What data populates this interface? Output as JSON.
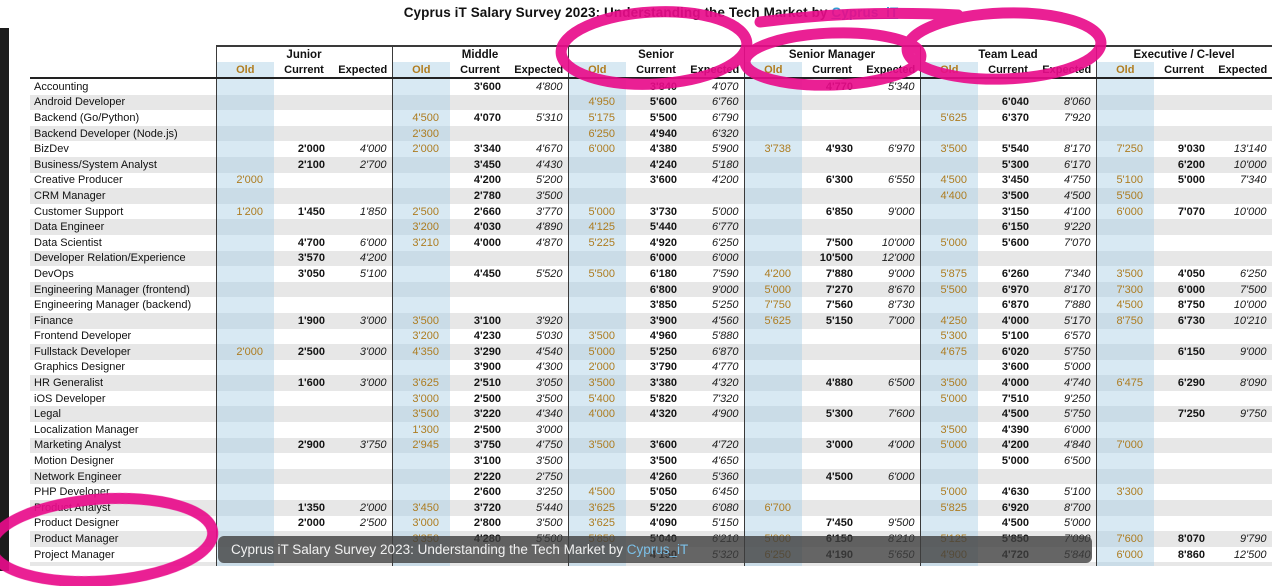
{
  "title": {
    "prefix": "Cyprus iT Salary Survey 2023: Understanding the Tech Market by ",
    "link": "Cyprus_iT"
  },
  "caption_bar": {
    "prefix": "Cyprus iT Salary Survey 2023: Understanding the Tech Market by ",
    "link": "Cyprus_iT"
  },
  "colors": {
    "marker_pink": "#e90c8b",
    "old_text": "#ad7c20",
    "old_column_bg": "#d8e9f3",
    "title_link_blue": "#2e9fd4",
    "caption_link_blue": "#7cc0e8",
    "row_stripe_gray": "#e7e7e7"
  },
  "annotations": {
    "circled_items": [
      "Senior",
      "Senior Manager",
      "Team Lead",
      "Project Manager"
    ]
  },
  "table": {
    "groups": [
      "Junior",
      "Middle",
      "Senior",
      "Senior Manager",
      "Team Lead",
      "Executive / C-level"
    ],
    "sub_headers": [
      "Old",
      "Current",
      "Expected"
    ],
    "rows": [
      {
        "label": "Accounting",
        "values": [
          "",
          "",
          "",
          "",
          "3'600",
          "4'800",
          "",
          "3'840",
          "4'070",
          "",
          "4'770",
          "5'340",
          "",
          "",
          "",
          "",
          "",
          ""
        ]
      },
      {
        "label": "Android Developer",
        "values": [
          "",
          "",
          "",
          "",
          "",
          "",
          "4'950",
          "5'600",
          "6'760",
          "",
          "",
          "",
          "",
          "6'040",
          "8'060",
          "",
          "",
          ""
        ]
      },
      {
        "label": "Backend (Go/Python)",
        "values": [
          "",
          "",
          "",
          "4'500",
          "4'070",
          "5'310",
          "5'175",
          "5'500",
          "6'790",
          "",
          "",
          "",
          "5'625",
          "6'370",
          "7'920",
          "",
          "",
          ""
        ]
      },
      {
        "label": "Backend Developer (Node.js)",
        "values": [
          "",
          "",
          "",
          "2'300",
          "",
          "",
          "6'250",
          "4'940",
          "6'320",
          "",
          "",
          "",
          "",
          "",
          "",
          "",
          "",
          ""
        ]
      },
      {
        "label": "BizDev",
        "values": [
          "",
          "2'000",
          "4'000",
          "2'000",
          "3'340",
          "4'670",
          "6'000",
          "4'380",
          "5'900",
          "3'738",
          "4'930",
          "6'970",
          "3'500",
          "5'540",
          "8'170",
          "7'250",
          "9'030",
          "13'140"
        ]
      },
      {
        "label": "Business/System Analyst",
        "values": [
          "",
          "2'100",
          "2'700",
          "",
          "3'450",
          "4'430",
          "",
          "4'240",
          "5'180",
          "",
          "",
          "",
          "",
          "5'300",
          "6'170",
          "",
          "6'200",
          "10'000"
        ]
      },
      {
        "label": "Creative Producer",
        "values": [
          "2'000",
          "",
          "",
          "",
          "4'200",
          "5'200",
          "",
          "3'600",
          "4'200",
          "",
          "6'300",
          "6'550",
          "4'500",
          "3'450",
          "4'750",
          "5'100",
          "5'000",
          "7'340"
        ]
      },
      {
        "label": "CRM Manager",
        "values": [
          "",
          "",
          "",
          "",
          "2'780",
          "3'500",
          "",
          "",
          "",
          "",
          "",
          "",
          "4'400",
          "3'500",
          "4'500",
          "5'500",
          "",
          ""
        ]
      },
      {
        "label": "Customer Support",
        "values": [
          "1'200",
          "1'450",
          "1'850",
          "2'500",
          "2'660",
          "3'770",
          "5'000",
          "3'730",
          "5'000",
          "",
          "6'850",
          "9'000",
          "",
          "3'150",
          "4'100",
          "6'000",
          "7'070",
          "10'000"
        ]
      },
      {
        "label": "Data Engineer",
        "values": [
          "",
          "",
          "",
          "3'200",
          "4'030",
          "4'890",
          "4'125",
          "5'440",
          "6'770",
          "",
          "",
          "",
          "",
          "6'150",
          "9'220",
          "",
          "",
          ""
        ]
      },
      {
        "label": "Data Scientist",
        "values": [
          "",
          "4'700",
          "6'000",
          "3'210",
          "4'000",
          "4'870",
          "5'225",
          "4'920",
          "6'250",
          "",
          "7'500",
          "10'000",
          "5'000",
          "5'600",
          "7'070",
          "",
          "",
          ""
        ]
      },
      {
        "label": "Developer Relation/Experience",
        "values": [
          "",
          "3'570",
          "4'200",
          "",
          "",
          "",
          "",
          "6'000",
          "6'000",
          "",
          "10'500",
          "12'000",
          "",
          "",
          "",
          "",
          "",
          ""
        ]
      },
      {
        "label": "DevOps",
        "values": [
          "",
          "3'050",
          "5'100",
          "",
          "4'450",
          "5'520",
          "5'500",
          "6'180",
          "7'590",
          "4'200",
          "7'880",
          "9'000",
          "5'875",
          "6'260",
          "7'340",
          "3'500",
          "4'050",
          "6'250"
        ]
      },
      {
        "label": "Engineering Manager (frontend)",
        "values": [
          "",
          "",
          "",
          "",
          "",
          "",
          "",
          "6'800",
          "9'000",
          "5'000",
          "7'270",
          "8'670",
          "5'500",
          "6'970",
          "8'170",
          "7'300",
          "6'000",
          "7'500"
        ]
      },
      {
        "label": "Engineering Manager (backend)",
        "values": [
          "",
          "",
          "",
          "",
          "",
          "",
          "",
          "3'850",
          "5'250",
          "7'750",
          "7'560",
          "8'730",
          "",
          "6'870",
          "7'880",
          "4'500",
          "8'750",
          "10'000"
        ]
      },
      {
        "label": "Finance",
        "values": [
          "",
          "1'900",
          "3'000",
          "3'500",
          "3'100",
          "3'920",
          "",
          "3'900",
          "4'560",
          "5'625",
          "5'150",
          "7'000",
          "4'250",
          "4'000",
          "5'170",
          "8'750",
          "6'730",
          "10'210"
        ]
      },
      {
        "label": "Frontend Developer",
        "values": [
          "",
          "",
          "",
          "3'200",
          "4'230",
          "5'030",
          "3'500",
          "4'960",
          "5'880",
          "",
          "",
          "",
          "5'300",
          "5'100",
          "6'570",
          "",
          "",
          ""
        ]
      },
      {
        "label": "Fullstack Developer",
        "values": [
          "2'000",
          "2'500",
          "3'000",
          "4'350",
          "3'290",
          "4'540",
          "5'000",
          "5'250",
          "6'870",
          "",
          "",
          "",
          "4'675",
          "6'020",
          "5'750",
          "",
          "6'150",
          "9'000"
        ]
      },
      {
        "label": "Graphics Designer",
        "values": [
          "",
          "",
          "",
          "",
          "3'900",
          "4'300",
          "2'000",
          "3'790",
          "4'770",
          "",
          "",
          "",
          "",
          "3'600",
          "5'000",
          "",
          "",
          ""
        ]
      },
      {
        "label": "HR Generalist",
        "values": [
          "",
          "1'600",
          "3'000",
          "3'625",
          "2'510",
          "3'050",
          "3'500",
          "3'380",
          "4'320",
          "",
          "4'880",
          "6'500",
          "3'500",
          "4'000",
          "4'740",
          "6'475",
          "6'290",
          "8'090"
        ]
      },
      {
        "label": "iOS Developer",
        "values": [
          "",
          "",
          "",
          "3'000",
          "2'500",
          "3'500",
          "5'400",
          "5'820",
          "7'320",
          "",
          "",
          "",
          "5'000",
          "7'510",
          "9'250",
          "",
          "",
          ""
        ]
      },
      {
        "label": "Legal",
        "values": [
          "",
          "",
          "",
          "3'500",
          "3'220",
          "4'340",
          "4'000",
          "4'320",
          "4'900",
          "",
          "5'300",
          "7'600",
          "",
          "4'500",
          "5'750",
          "",
          "7'250",
          "9'750"
        ]
      },
      {
        "label": "Localization Manager",
        "values": [
          "",
          "",
          "",
          "1'300",
          "2'500",
          "3'000",
          "",
          "",
          "",
          "",
          "",
          "",
          "3'500",
          "4'390",
          "6'000",
          "",
          "",
          ""
        ]
      },
      {
        "label": "Marketing Analyst",
        "values": [
          "",
          "2'900",
          "3'750",
          "2'945",
          "3'750",
          "4'750",
          "3'500",
          "3'600",
          "4'720",
          "",
          "3'000",
          "4'000",
          "5'000",
          "4'200",
          "4'840",
          "7'000",
          "",
          ""
        ]
      },
      {
        "label": "Motion Designer",
        "values": [
          "",
          "",
          "",
          "",
          "3'100",
          "3'500",
          "",
          "3'500",
          "4'650",
          "",
          "",
          "",
          "",
          "5'000",
          "6'500",
          "",
          "",
          ""
        ]
      },
      {
        "label": "Network Engineer",
        "values": [
          "",
          "",
          "",
          "",
          "2'220",
          "2'750",
          "",
          "4'260",
          "5'360",
          "",
          "4'500",
          "6'000",
          "",
          "",
          "",
          "",
          "",
          ""
        ]
      },
      {
        "label": "PHP Developer",
        "values": [
          "",
          "",
          "",
          "",
          "2'600",
          "3'250",
          "4'500",
          "5'050",
          "6'450",
          "",
          "",
          "",
          "5'000",
          "4'630",
          "5'100",
          "3'300",
          "",
          ""
        ]
      },
      {
        "label": "Product Analyst",
        "values": [
          "",
          "1'350",
          "2'000",
          "3'450",
          "3'720",
          "5'440",
          "3'625",
          "5'220",
          "6'080",
          "6'700",
          "",
          "",
          "5'825",
          "6'920",
          "8'700",
          "",
          "",
          ""
        ]
      },
      {
        "label": "Product Designer",
        "values": [
          "",
          "2'000",
          "2'500",
          "3'000",
          "2'800",
          "3'500",
          "3'625",
          "4'090",
          "5'150",
          "",
          "7'450",
          "9'500",
          "",
          "4'500",
          "5'000",
          "",
          "",
          ""
        ]
      },
      {
        "label": "Product Manager",
        "values": [
          "",
          "",
          "",
          "3'350",
          "4'280",
          "5'500",
          "5'850",
          "5'040",
          "6'210",
          "5'000",
          "6'150",
          "8'210",
          "5'125",
          "5'850",
          "7'090",
          "7'600",
          "8'070",
          "9'790"
        ]
      },
      {
        "label": "Project Manager",
        "values": [
          "",
          "",
          "",
          "",
          "",
          "",
          "",
          "4'150",
          "5'320",
          "6'250",
          "4'190",
          "5'650",
          "4'900",
          "4'720",
          "5'840",
          "6'000",
          "8'860",
          "12'500"
        ]
      },
      {
        "label": "",
        "values": [
          "",
          "",
          "",
          "",
          "",
          "",
          "",
          "",
          "",
          "",
          "",
          "",
          "",
          "",
          "",
          "",
          "",
          ""
        ]
      }
    ]
  }
}
